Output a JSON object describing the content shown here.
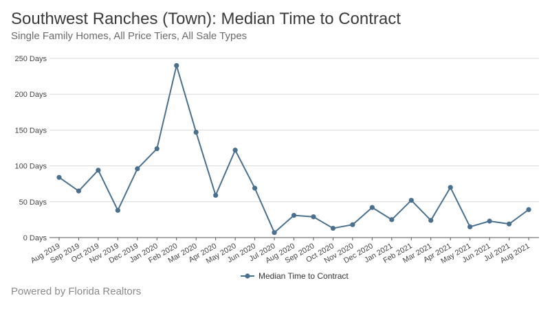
{
  "header": {
    "title": "Southwest Ranches (Town): Median Time to Contract",
    "subtitle": "Single Family Homes, All Price Tiers, All Sale Types"
  },
  "footer": {
    "text": "Powered by Florida Realtors"
  },
  "chart_data": {
    "type": "line",
    "categories": [
      "Aug 2019",
      "Sep 2019",
      "Oct 2019",
      "Nov 2019",
      "Dec 2019",
      "Jan 2020",
      "Feb 2020",
      "Mar 2020",
      "Apr 2020",
      "May 2020",
      "Jun 2020",
      "Jul 2020",
      "Aug 2020",
      "Sep 2020",
      "Oct 2020",
      "Nov 2020",
      "Dec 2020",
      "Jan 2021",
      "Feb 2021",
      "Mar 2021",
      "Apr 2021",
      "May 2021",
      "Jun 2021",
      "Jul 2021",
      "Aug 2021"
    ],
    "series": [
      {
        "name": "Median Time to Contract",
        "values": [
          84,
          65,
          94,
          38,
          96,
          124,
          240,
          147,
          59,
          122,
          69,
          7,
          31,
          29,
          13,
          18,
          42,
          25,
          52,
          24,
          70,
          15,
          23,
          19,
          39
        ]
      }
    ],
    "yticks": [
      0,
      50,
      100,
      150,
      200,
      250
    ],
    "ytick_suffix": " Days",
    "ylim": [
      0,
      250
    ],
    "grid": true,
    "legend": "bottom-center",
    "colors": {
      "line": "#4a7090",
      "grid": "#d9d9d9",
      "axis": "#555555"
    }
  }
}
